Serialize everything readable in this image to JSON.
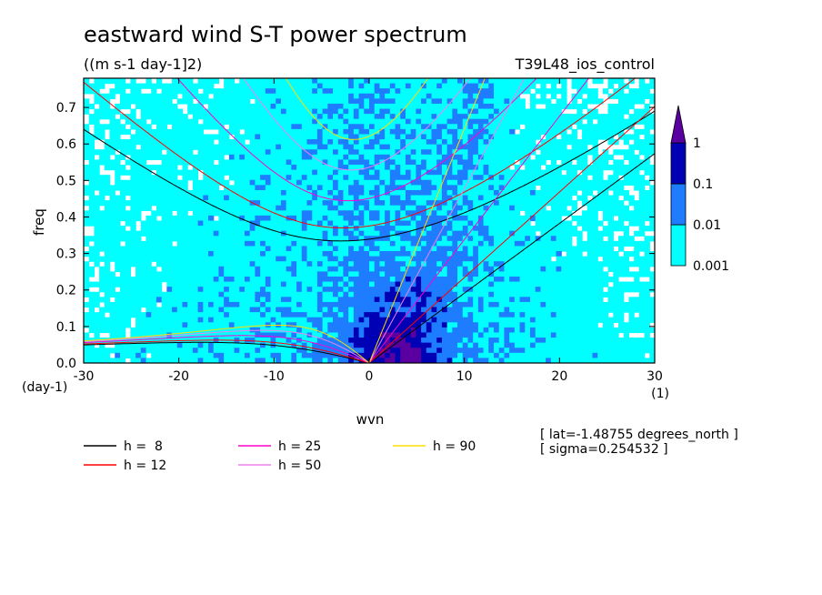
{
  "chart_data": {
    "type": "heatmap",
    "title": "eastward wind S-T power spectrum",
    "subtitle": "((m s-1 day-1]2)",
    "run_label": "T39L48_ios_control",
    "xlabel": "wvn",
    "ylabel": "freq",
    "x_units": "(1)",
    "y_units": "(day-1)",
    "xlim": [
      -30,
      30
    ],
    "ylim": [
      0,
      0.78
    ],
    "x_ticks": [
      "-30",
      "-20",
      "-10",
      "0",
      "10",
      "20",
      "30"
    ],
    "y_ticks": [
      "0.0",
      "0.1",
      "0.2",
      "0.3",
      "0.4",
      "0.5",
      "0.6",
      "0.7"
    ],
    "colorbar": {
      "levels": [
        "0.001",
        "0.01",
        "0.1",
        "1"
      ],
      "colors": [
        "#00ffff",
        "#1e7cff",
        "#0000b4",
        "#5a00a0"
      ]
    },
    "dispersion_curves": [
      {
        "name": "h =  8",
        "h": 8,
        "color": "#000000"
      },
      {
        "name": "h = 12",
        "h": 12,
        "color": "#ff0000"
      },
      {
        "name": "h = 25",
        "h": 25,
        "color": "#ff00cc"
      },
      {
        "name": "h = 50",
        "h": 50,
        "color": "#ee82ee"
      },
      {
        "name": "h = 90",
        "h": 90,
        "color": "#ffdd00"
      }
    ],
    "annotations": [
      "[ lat=-1.48755 degrees_north ]",
      "[ sigma=0.254532 ]"
    ]
  }
}
